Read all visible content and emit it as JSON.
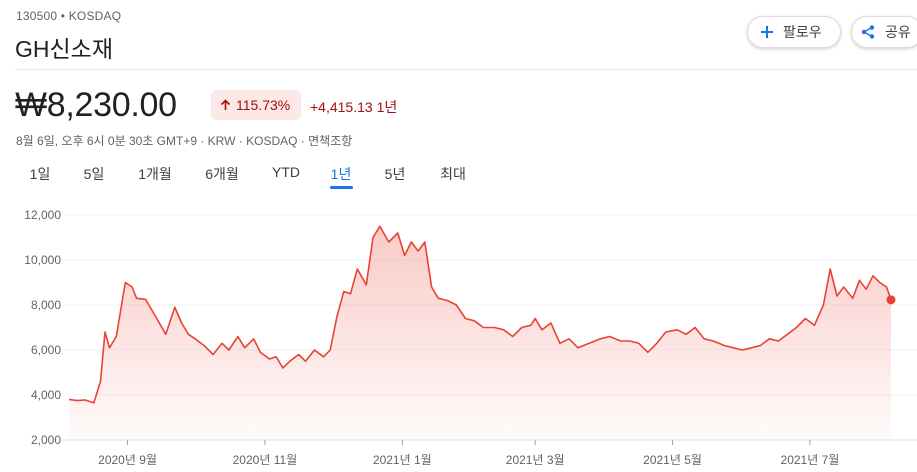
{
  "stock": {
    "ticker_line": "130500 • KOSDAQ",
    "name": "GH신소재",
    "price": "₩8,230.00",
    "change_percent": "115.73%",
    "change_abs": "+4,415.13",
    "change_period": "1년",
    "meta": "8월 6일, 오후 6시 0분 30초 GMT+9 · KRW · KOSDAQ · 면책조항"
  },
  "actions": {
    "follow_label": "팔로우",
    "share_label": "공유"
  },
  "icons": {
    "follow": "plus-icon",
    "share": "share-icon",
    "change": "arrow-up-icon"
  },
  "colors": {
    "line": "#ea4335",
    "positive_text": "#a50e0e",
    "badge_bg": "#fce8e6",
    "active_tab": "#1a73e8"
  },
  "tabs": [
    "1일",
    "5일",
    "1개월",
    "6개월",
    "YTD",
    "1년",
    "5년",
    "최대"
  ],
  "active_tab_index": 5,
  "chart_data": {
    "type": "area",
    "y_ticks": [
      "12,000",
      "10,000",
      "8,000",
      "6,000",
      "4,000",
      "2,000"
    ],
    "y_tick_values": [
      12000,
      10000,
      8000,
      6000,
      4000,
      2000
    ],
    "ylim": [
      2000,
      12000
    ],
    "x_ticks": [
      "2020년 9월",
      "2020년 11월",
      "2021년 1월",
      "2021년 3월",
      "2021년 5월",
      "2021년 7월"
    ],
    "x_tick_dates": [
      "2020-09-01",
      "2020-11-01",
      "2021-01-01",
      "2021-03-01",
      "2021-05-01",
      "2021-07-01"
    ],
    "xlim": [
      "2020-08-06",
      "2021-08-06"
    ],
    "series": [
      {
        "points": [
          [
            "2020-08-06",
            3800
          ],
          [
            "2020-08-10",
            3750
          ],
          [
            "2020-08-13",
            3780
          ],
          [
            "2020-08-17",
            3650
          ],
          [
            "2020-08-20",
            4600
          ],
          [
            "2020-08-22",
            6800
          ],
          [
            "2020-08-24",
            6100
          ],
          [
            "2020-08-27",
            6600
          ],
          [
            "2020-08-31",
            9000
          ],
          [
            "2020-09-03",
            8800
          ],
          [
            "2020-09-05",
            8300
          ],
          [
            "2020-09-09",
            8250
          ],
          [
            "2020-09-14",
            7400
          ],
          [
            "2020-09-18",
            6700
          ],
          [
            "2020-09-22",
            7900
          ],
          [
            "2020-09-25",
            7200
          ],
          [
            "2020-09-28",
            6700
          ],
          [
            "2020-10-01",
            6500
          ],
          [
            "2020-10-05",
            6200
          ],
          [
            "2020-10-09",
            5800
          ],
          [
            "2020-10-13",
            6300
          ],
          [
            "2020-10-16",
            6000
          ],
          [
            "2020-10-20",
            6600
          ],
          [
            "2020-10-23",
            6100
          ],
          [
            "2020-10-27",
            6500
          ],
          [
            "2020-10-30",
            5900
          ],
          [
            "2020-11-03",
            5600
          ],
          [
            "2020-11-06",
            5700
          ],
          [
            "2020-11-09",
            5200
          ],
          [
            "2020-11-12",
            5500
          ],
          [
            "2020-11-16",
            5800
          ],
          [
            "2020-11-19",
            5500
          ],
          [
            "2020-11-23",
            6000
          ],
          [
            "2020-11-27",
            5700
          ],
          [
            "2020-11-30",
            6000
          ],
          [
            "2020-12-03",
            7500
          ],
          [
            "2020-12-06",
            8600
          ],
          [
            "2020-12-09",
            8500
          ],
          [
            "2020-12-12",
            9600
          ],
          [
            "2020-12-16",
            8900
          ],
          [
            "2020-12-19",
            11000
          ],
          [
            "2020-12-22",
            11500
          ],
          [
            "2020-12-26",
            10800
          ],
          [
            "2020-12-30",
            11200
          ],
          [
            "2021-01-02",
            10200
          ],
          [
            "2021-01-05",
            10800
          ],
          [
            "2021-01-08",
            10400
          ],
          [
            "2021-01-11",
            10800
          ],
          [
            "2021-01-14",
            8800
          ],
          [
            "2021-01-17",
            8300
          ],
          [
            "2021-01-21",
            8200
          ],
          [
            "2021-01-25",
            8000
          ],
          [
            "2021-01-29",
            7400
          ],
          [
            "2021-02-02",
            7300
          ],
          [
            "2021-02-06",
            7000
          ],
          [
            "2021-02-11",
            7000
          ],
          [
            "2021-02-15",
            6900
          ],
          [
            "2021-02-19",
            6600
          ],
          [
            "2021-02-23",
            7000
          ],
          [
            "2021-02-27",
            7100
          ],
          [
            "2021-03-01",
            7400
          ],
          [
            "2021-03-04",
            6900
          ],
          [
            "2021-03-08",
            7200
          ],
          [
            "2021-03-12",
            6300
          ],
          [
            "2021-03-16",
            6500
          ],
          [
            "2021-03-20",
            6100
          ],
          [
            "2021-03-25",
            6300
          ],
          [
            "2021-03-30",
            6500
          ],
          [
            "2021-04-03",
            6600
          ],
          [
            "2021-04-08",
            6400
          ],
          [
            "2021-04-12",
            6400
          ],
          [
            "2021-04-16",
            6300
          ],
          [
            "2021-04-20",
            5900
          ],
          [
            "2021-04-24",
            6300
          ],
          [
            "2021-04-28",
            6800
          ],
          [
            "2021-05-03",
            6900
          ],
          [
            "2021-05-07",
            6700
          ],
          [
            "2021-05-11",
            7000
          ],
          [
            "2021-05-15",
            6500
          ],
          [
            "2021-05-19",
            6400
          ],
          [
            "2021-05-24",
            6200
          ],
          [
            "2021-05-28",
            6100
          ],
          [
            "2021-06-01",
            6000
          ],
          [
            "2021-06-05",
            6100
          ],
          [
            "2021-06-09",
            6200
          ],
          [
            "2021-06-13",
            6500
          ],
          [
            "2021-06-17",
            6400
          ],
          [
            "2021-06-21",
            6700
          ],
          [
            "2021-06-25",
            7000
          ],
          [
            "2021-06-29",
            7400
          ],
          [
            "2021-07-03",
            7100
          ],
          [
            "2021-07-07",
            8000
          ],
          [
            "2021-07-10",
            9600
          ],
          [
            "2021-07-13",
            8400
          ],
          [
            "2021-07-16",
            8800
          ],
          [
            "2021-07-20",
            8300
          ],
          [
            "2021-07-23",
            9100
          ],
          [
            "2021-07-26",
            8700
          ],
          [
            "2021-07-29",
            9300
          ],
          [
            "2021-08-01",
            9000
          ],
          [
            "2021-08-04",
            8800
          ],
          [
            "2021-08-06",
            8230
          ]
        ]
      }
    ]
  }
}
